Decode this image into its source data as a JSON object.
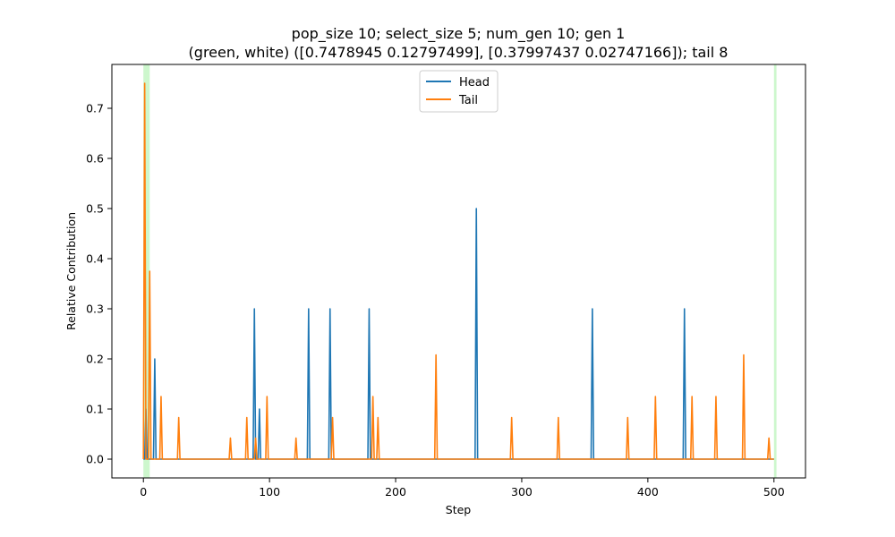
{
  "chart_data": {
    "type": "line",
    "title": "pop_size 10; select_size 5; num_gen 10; gen 1",
    "subtitle": "(green, white) ([0.7478945  0.12797499], [0.37997437 0.02747166]); tail 8",
    "xlabel": "Step",
    "ylabel": "Relative Contribution",
    "xlim": [
      -25,
      525
    ],
    "ylim": [
      -0.0375,
      0.7875
    ],
    "xticks": [
      0,
      100,
      200,
      300,
      400,
      500
    ],
    "yticks": [
      0.0,
      0.1,
      0.2,
      0.3,
      0.4,
      0.5,
      0.6,
      0.7
    ],
    "xtick_labels": [
      "0",
      "100",
      "200",
      "300",
      "400",
      "500"
    ],
    "ytick_labels": [
      "0.0",
      "0.1",
      "0.2",
      "0.3",
      "0.4",
      "0.5",
      "0.6",
      "0.7"
    ],
    "grid": false,
    "legend_position": "upper center",
    "highlight_regions": [
      {
        "x0": 0,
        "x1": 5,
        "color": "#90ee90"
      },
      {
        "x0": 500,
        "x1": 502,
        "color": "#90ee90"
      }
    ],
    "x_end": 500,
    "series": [
      {
        "name": "Head",
        "color": "#1f77b4",
        "spikes": [
          [
            2,
            0.1
          ],
          [
            9,
            0.2
          ],
          [
            88,
            0.3
          ],
          [
            92,
            0.1
          ],
          [
            131,
            0.3
          ],
          [
            148,
            0.3
          ],
          [
            179,
            0.3
          ],
          [
            264,
            0.5
          ],
          [
            356,
            0.3
          ],
          [
            429,
            0.3
          ]
        ]
      },
      {
        "name": "Tail",
        "color": "#ff7f0e",
        "spikes": [
          [
            1,
            0.75
          ],
          [
            5,
            0.375
          ],
          [
            14,
            0.125
          ],
          [
            28,
            0.083
          ],
          [
            69,
            0.042
          ],
          [
            82,
            0.083
          ],
          [
            89,
            0.042
          ],
          [
            98,
            0.125
          ],
          [
            121,
            0.042
          ],
          [
            150,
            0.083
          ],
          [
            182,
            0.125
          ],
          [
            186,
            0.083
          ],
          [
            232,
            0.208
          ],
          [
            292,
            0.083
          ],
          [
            329,
            0.083
          ],
          [
            384,
            0.083
          ],
          [
            406,
            0.125
          ],
          [
            435,
            0.125
          ],
          [
            454,
            0.125
          ],
          [
            476,
            0.208
          ],
          [
            496,
            0.042
          ]
        ]
      }
    ]
  }
}
